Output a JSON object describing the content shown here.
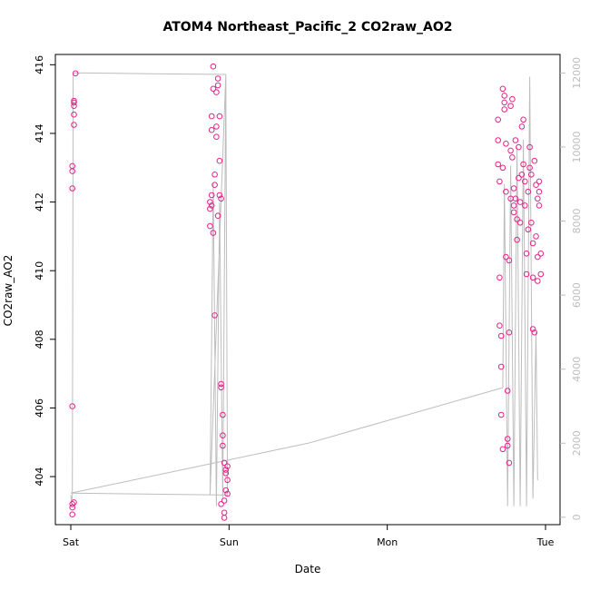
{
  "chart_data": {
    "type": "scatter",
    "title": "ATOM4 Northeast_Pacific_2 CO2raw_AO2",
    "xlabel": "Date",
    "ylabel": "CO2raw_AO2",
    "x_ticks": [
      "Sat",
      "Sun",
      "Mon",
      "Tue"
    ],
    "x_range_days": [
      0,
      3.0
    ],
    "ylim": [
      402.6,
      416.3
    ],
    "y_ticks": [
      404,
      406,
      408,
      410,
      412,
      414,
      416
    ],
    "y2_ticks": [
      0,
      2000,
      4000,
      6000,
      8000,
      10000,
      12000
    ],
    "y2lim": [
      -200,
      12500
    ],
    "grid": false,
    "colors": {
      "points": "#e6228a",
      "secondary_line": "#bdbdbd",
      "axes": "#000000"
    },
    "series": [
      {
        "values": [
          [
            0.01,
            403.2
          ],
          [
            0.01,
            403.1
          ],
          [
            0.01,
            402.9
          ],
          [
            0.01,
            406.05
          ],
          [
            0.01,
            412.4
          ],
          [
            0.01,
            412.9
          ],
          [
            0.01,
            413.05
          ],
          [
            0.02,
            414.25
          ],
          [
            0.02,
            414.55
          ],
          [
            0.02,
            414.8
          ],
          [
            0.02,
            414.9
          ],
          [
            0.02,
            414.95
          ],
          [
            0.03,
            415.75
          ],
          [
            0.02,
            403.25
          ],
          [
            0.88,
            411.3
          ],
          [
            0.88,
            411.8
          ],
          [
            0.88,
            412.0
          ],
          [
            0.89,
            411.9
          ],
          [
            0.89,
            412.2
          ],
          [
            0.89,
            414.1
          ],
          [
            0.89,
            414.5
          ],
          [
            0.9,
            415.3
          ],
          [
            0.9,
            415.95
          ],
          [
            0.9,
            411.1
          ],
          [
            0.91,
            412.5
          ],
          [
            0.91,
            412.8
          ],
          [
            0.91,
            408.7
          ],
          [
            0.92,
            413.9
          ],
          [
            0.92,
            414.2
          ],
          [
            0.92,
            415.2
          ],
          [
            0.93,
            415.6
          ],
          [
            0.93,
            415.4
          ],
          [
            0.93,
            411.6
          ],
          [
            0.94,
            412.2
          ],
          [
            0.94,
            414.5
          ],
          [
            0.94,
            413.2
          ],
          [
            0.95,
            412.1
          ],
          [
            0.95,
            406.6
          ],
          [
            0.95,
            406.7
          ],
          [
            0.96,
            405.8
          ],
          [
            0.96,
            405.2
          ],
          [
            0.96,
            404.9
          ],
          [
            0.97,
            404.4
          ],
          [
            0.97,
            403.3
          ],
          [
            0.97,
            402.8
          ],
          [
            0.98,
            404.1
          ],
          [
            0.98,
            403.6
          ],
          [
            0.98,
            404.2
          ],
          [
            0.99,
            404.3
          ],
          [
            0.99,
            403.5
          ],
          [
            0.99,
            403.9
          ],
          [
            0.97,
            402.95
          ],
          [
            0.95,
            403.2
          ],
          [
            2.7,
            414.4
          ],
          [
            2.7,
            413.8
          ],
          [
            2.7,
            413.1
          ],
          [
            2.71,
            412.6
          ],
          [
            2.71,
            409.8
          ],
          [
            2.71,
            408.4
          ],
          [
            2.72,
            408.1
          ],
          [
            2.72,
            407.2
          ],
          [
            2.72,
            405.8
          ],
          [
            2.73,
            404.8
          ],
          [
            2.73,
            413.0
          ],
          [
            2.73,
            415.3
          ],
          [
            2.74,
            415.1
          ],
          [
            2.74,
            414.7
          ],
          [
            2.74,
            414.9
          ],
          [
            2.75,
            413.7
          ],
          [
            2.75,
            412.3
          ],
          [
            2.75,
            410.4
          ],
          [
            2.76,
            406.5
          ],
          [
            2.76,
            405.1
          ],
          [
            2.76,
            404.9
          ],
          [
            2.77,
            404.4
          ],
          [
            2.77,
            408.2
          ],
          [
            2.77,
            410.3
          ],
          [
            2.78,
            412.1
          ],
          [
            2.78,
            413.5
          ],
          [
            2.78,
            414.8
          ],
          [
            2.79,
            415.0
          ],
          [
            2.79,
            413.3
          ],
          [
            2.8,
            411.7
          ],
          [
            2.8,
            411.9
          ],
          [
            2.8,
            412.4
          ],
          [
            2.81,
            413.8
          ],
          [
            2.81,
            412.1
          ],
          [
            2.82,
            411.5
          ],
          [
            2.82,
            410.9
          ],
          [
            2.83,
            412.7
          ],
          [
            2.83,
            413.6
          ],
          [
            2.84,
            412.0
          ],
          [
            2.84,
            411.4
          ],
          [
            2.85,
            412.8
          ],
          [
            2.85,
            414.2
          ],
          [
            2.86,
            414.4
          ],
          [
            2.86,
            413.1
          ],
          [
            2.87,
            412.6
          ],
          [
            2.87,
            411.9
          ],
          [
            2.88,
            410.5
          ],
          [
            2.88,
            409.9
          ],
          [
            2.89,
            411.2
          ],
          [
            2.89,
            412.3
          ],
          [
            2.9,
            413.0
          ],
          [
            2.9,
            413.6
          ],
          [
            2.91,
            412.8
          ],
          [
            2.91,
            411.4
          ],
          [
            2.92,
            410.8
          ],
          [
            2.92,
            409.8
          ],
          [
            2.92,
            408.3
          ],
          [
            2.93,
            408.2
          ],
          [
            2.93,
            413.2
          ],
          [
            2.94,
            412.5
          ],
          [
            2.94,
            411.0
          ],
          [
            2.95,
            410.4
          ],
          [
            2.95,
            409.7
          ],
          [
            2.95,
            412.1
          ],
          [
            2.96,
            412.6
          ],
          [
            2.96,
            411.9
          ],
          [
            2.96,
            412.3
          ],
          [
            2.97,
            410.5
          ],
          [
            2.97,
            409.9
          ]
        ]
      },
      {
        "axis": "right",
        "type": "line",
        "values": [
          [
            0.0,
            600
          ],
          [
            0.005,
            400
          ],
          [
            0.01,
            600
          ],
          [
            0.015,
            12000
          ],
          [
            0.1,
            12000
          ],
          [
            0.5,
            11980
          ],
          [
            0.98,
            11960
          ],
          [
            0.88,
            600
          ],
          [
            0.9,
            9000
          ],
          [
            0.92,
            300
          ],
          [
            0.94,
            8500
          ],
          [
            0.96,
            500
          ],
          [
            0.98,
            11900
          ],
          [
            0.99,
            600
          ],
          [
            0.0,
            650
          ],
          [
            1.5,
            2000
          ],
          [
            2.73,
            3500
          ],
          [
            2.74,
            9000
          ],
          [
            2.76,
            300
          ],
          [
            2.78,
            9500
          ],
          [
            2.8,
            300
          ],
          [
            2.82,
            10000
          ],
          [
            2.84,
            300
          ],
          [
            2.86,
            10200
          ],
          [
            2.88,
            300
          ],
          [
            2.9,
            11900
          ],
          [
            2.92,
            500
          ],
          [
            2.94,
            5000
          ],
          [
            2.95,
            1000
          ]
        ]
      }
    ]
  }
}
